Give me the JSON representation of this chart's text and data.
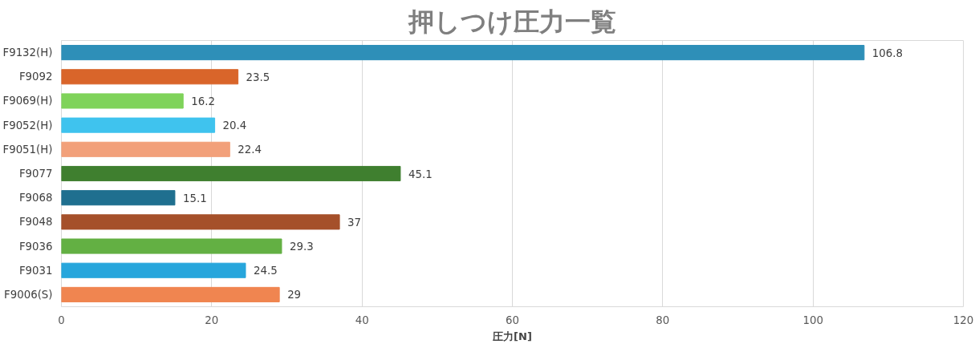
{
  "chart_data": {
    "type": "bar",
    "orientation": "horizontal",
    "title": "押しつけ圧力一覧",
    "xlabel": "圧力[N]",
    "categories": [
      "F9132(H)",
      "F9092",
      "F9069(H)",
      "F9052(H)",
      "F9051(H)",
      "F9077",
      "F9068",
      "F9048",
      "F9036",
      "F9031",
      "F9006(S)"
    ],
    "values": [
      106.8,
      23.5,
      16.2,
      20.4,
      22.4,
      45.1,
      15.1,
      37,
      29.3,
      24.5,
      29
    ],
    "colors": [
      "#2e8fb8",
      "#d9652a",
      "#7fd35a",
      "#3fc3ee",
      "#f2a07a",
      "#3f7f2f",
      "#1f6f8f",
      "#a5502a",
      "#63b043",
      "#27a6dc",
      "#f08550"
    ],
    "xlim": [
      0,
      120
    ],
    "xticks": [
      0,
      20,
      40,
      60,
      80,
      100,
      120
    ],
    "grid": "x",
    "data_labels": true
  }
}
